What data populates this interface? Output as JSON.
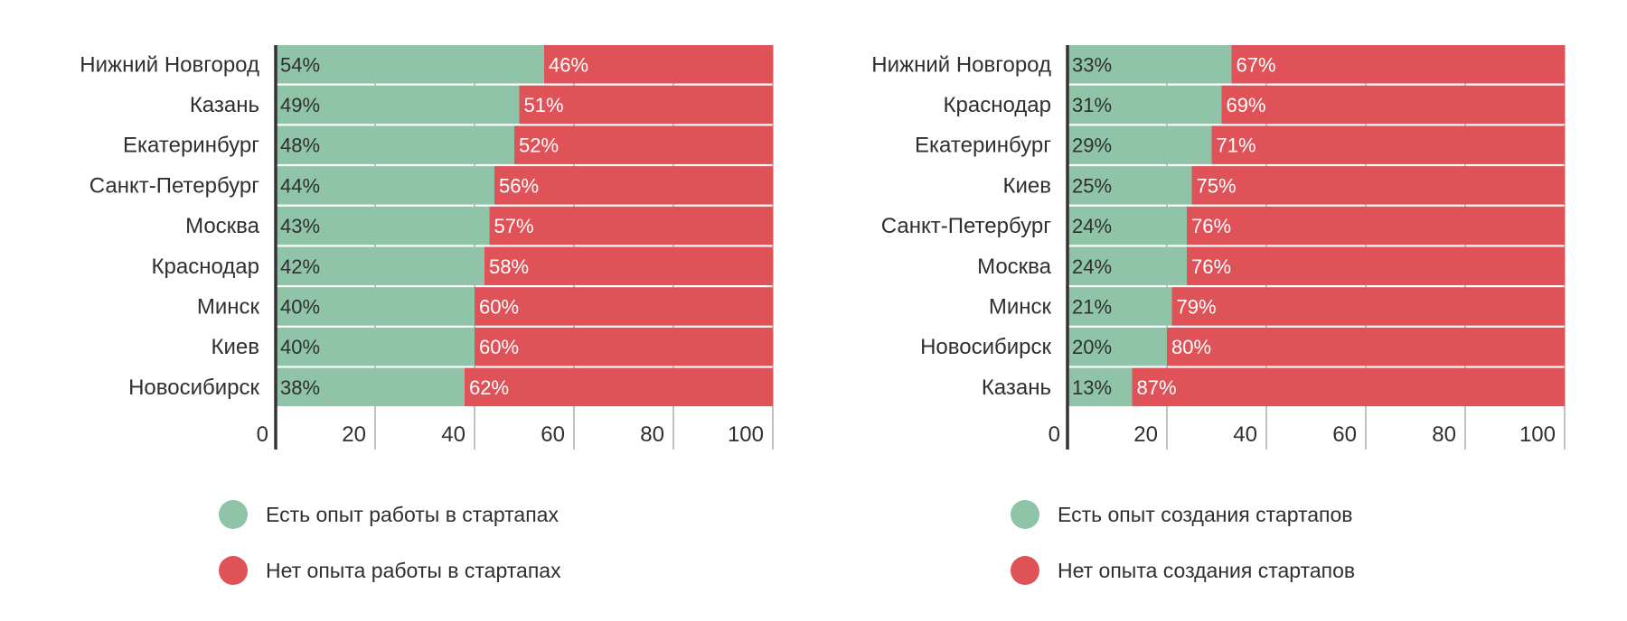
{
  "colors": {
    "green": "#8fc4a8",
    "red": "#de5258",
    "axis": "#333333",
    "grid": "#999999"
  },
  "chart_data": [
    {
      "type": "bar",
      "stacked": true,
      "orientation": "horizontal",
      "categories": [
        "Нижний Новгород",
        "Казань",
        "Екатеринбург",
        "Санкт-Петербург",
        "Москва",
        "Краснодар",
        "Минск",
        "Киев",
        "Новосибирск"
      ],
      "series": [
        {
          "name": "Есть опыт работы в стартапах",
          "values": [
            54,
            49,
            48,
            44,
            43,
            42,
            40,
            40,
            38
          ],
          "color": "#8fc4a8"
        },
        {
          "name": "Нет опыта работы в стартапах",
          "values": [
            46,
            51,
            52,
            56,
            57,
            58,
            60,
            60,
            62
          ],
          "color": "#de5258"
        }
      ],
      "value_labels": [
        [
          "54%",
          "49%",
          "48%",
          "44%",
          "43%",
          "42%",
          "40%",
          "40%",
          "38%"
        ],
        [
          "46%",
          "51%",
          "52%",
          "56%",
          "57%",
          "58%",
          "60%",
          "60%",
          "62%"
        ]
      ],
      "xticks": [
        "0",
        "20",
        "40",
        "60",
        "80",
        "100"
      ],
      "xlim": [
        0,
        100
      ],
      "grid": true,
      "legend_position": "bottom"
    },
    {
      "type": "bar",
      "stacked": true,
      "orientation": "horizontal",
      "categories": [
        "Нижний Новгород",
        "Краснодар",
        "Екатеринбург",
        "Киев",
        "Санкт-Петербург",
        "Москва",
        "Минск",
        "Новосибирск",
        "Казань"
      ],
      "series": [
        {
          "name": "Есть опыт создания стартапов",
          "values": [
            33,
            31,
            29,
            25,
            24,
            24,
            21,
            20,
            13
          ],
          "color": "#8fc4a8"
        },
        {
          "name": "Нет опыта создания стартапов",
          "values": [
            67,
            69,
            71,
            75,
            76,
            76,
            79,
            80,
            87
          ],
          "color": "#de5258"
        }
      ],
      "value_labels": [
        [
          "33%",
          "31%",
          "29%",
          "25%",
          "24%",
          "24%",
          "21%",
          "20%",
          "13%"
        ],
        [
          "67%",
          "69%",
          "71%",
          "75%",
          "76%",
          "76%",
          "79%",
          "80%",
          "87%"
        ]
      ],
      "xticks": [
        "0",
        "20",
        "40",
        "60",
        "80",
        "100"
      ],
      "xlim": [
        0,
        100
      ],
      "grid": true,
      "legend_position": "bottom"
    }
  ]
}
